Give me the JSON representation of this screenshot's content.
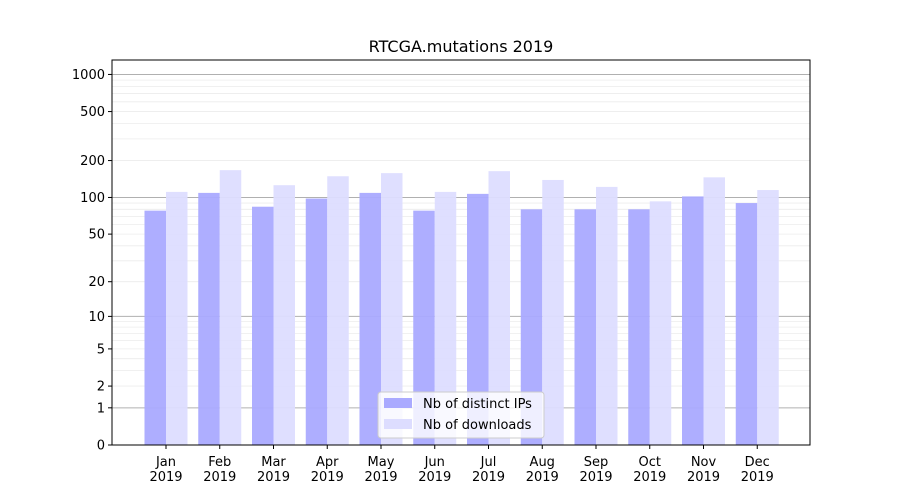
{
  "chart_data": {
    "type": "bar",
    "title": "RTCGA.mutations 2019",
    "xlabel": "",
    "ylabel": "",
    "yscale": "symlog (log10(1+y))",
    "ylim": [
      0,
      1200
    ],
    "yticks": [
      0,
      1,
      2,
      5,
      10,
      20,
      50,
      100,
      200,
      500,
      1000
    ],
    "grid": true,
    "legend_position": "bottom-center",
    "categories": [
      "Jan\n2019",
      "Feb\n2019",
      "Mar\n2019",
      "Apr\n2019",
      "May\n2019",
      "Jun\n2019",
      "Jul\n2019",
      "Aug\n2019",
      "Sep\n2019",
      "Oct\n2019",
      "Nov\n2019",
      "Dec\n2019"
    ],
    "series": [
      {
        "name": "Nb of distinct IPs",
        "color": "#aaaaff",
        "values": [
          78,
          109,
          84,
          98,
          109,
          78,
          107,
          80,
          80,
          80,
          102,
          90
        ]
      },
      {
        "name": "Nb of downloads",
        "color": "#ddddff",
        "values": [
          111,
          167,
          126,
          149,
          158,
          111,
          164,
          139,
          122,
          93,
          146,
          115
        ]
      }
    ]
  }
}
